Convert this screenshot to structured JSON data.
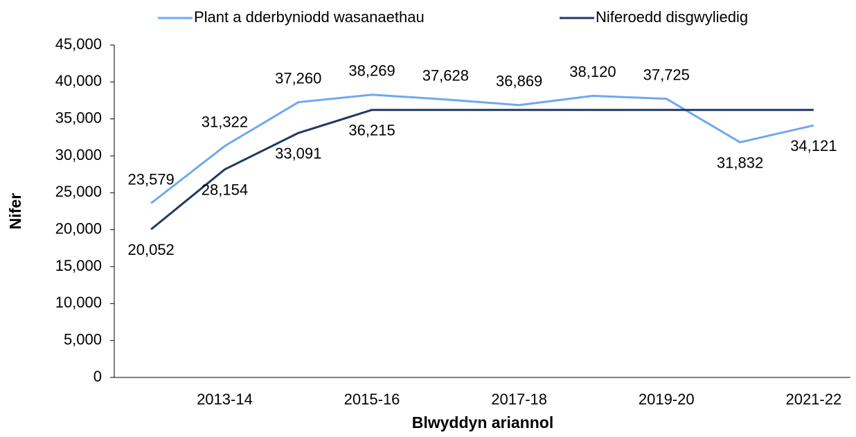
{
  "chart_data": {
    "type": "line",
    "x_label": "Blwyddyn ariannol",
    "y_label": "Nifer",
    "categories": [
      null,
      "2013-14",
      null,
      "2015-16",
      null,
      "2017-18",
      null,
      "2019-20",
      null,
      "2021-22"
    ],
    "series": [
      {
        "name": "Plant a dderbyniodd wasanaethau",
        "color": "#6fa8f0",
        "values": [
          23579,
          31322,
          37260,
          38269,
          37628,
          36869,
          38120,
          37725,
          31832,
          34121
        ],
        "value_labels": [
          "23,579",
          "31,322",
          "37,260",
          "38,269",
          "37,628",
          "36,869",
          "38,120",
          "37,725",
          "31,832",
          "34,121"
        ]
      },
      {
        "name": "Niferoedd disgwyliedig",
        "color": "#1f3864",
        "values": [
          20052,
          28154,
          33091,
          36215,
          36215,
          36215,
          36215,
          36215,
          36215,
          36215
        ],
        "value_labels": [
          "20,052",
          "28,154",
          "33,091",
          "36,215",
          null,
          null,
          null,
          null,
          null,
          null
        ]
      }
    ],
    "ylim": [
      0,
      45000
    ],
    "yticks": [
      0,
      {
        "value": 5000,
        "label": "5,000"
      },
      {
        "value": 10000,
        "label": "10,000"
      },
      {
        "value": 15000,
        "label": "15,000"
      },
      {
        "value": 20000,
        "label": "20,000"
      },
      {
        "value": 25000,
        "label": "25,000"
      },
      {
        "value": 30000,
        "label": "30,000"
      },
      {
        "value": 35000,
        "label": "35,000"
      },
      {
        "value": 40000,
        "label": "40,000"
      },
      {
        "value": 45000,
        "label": "45,000"
      }
    ],
    "grid": false,
    "legend": "top"
  }
}
